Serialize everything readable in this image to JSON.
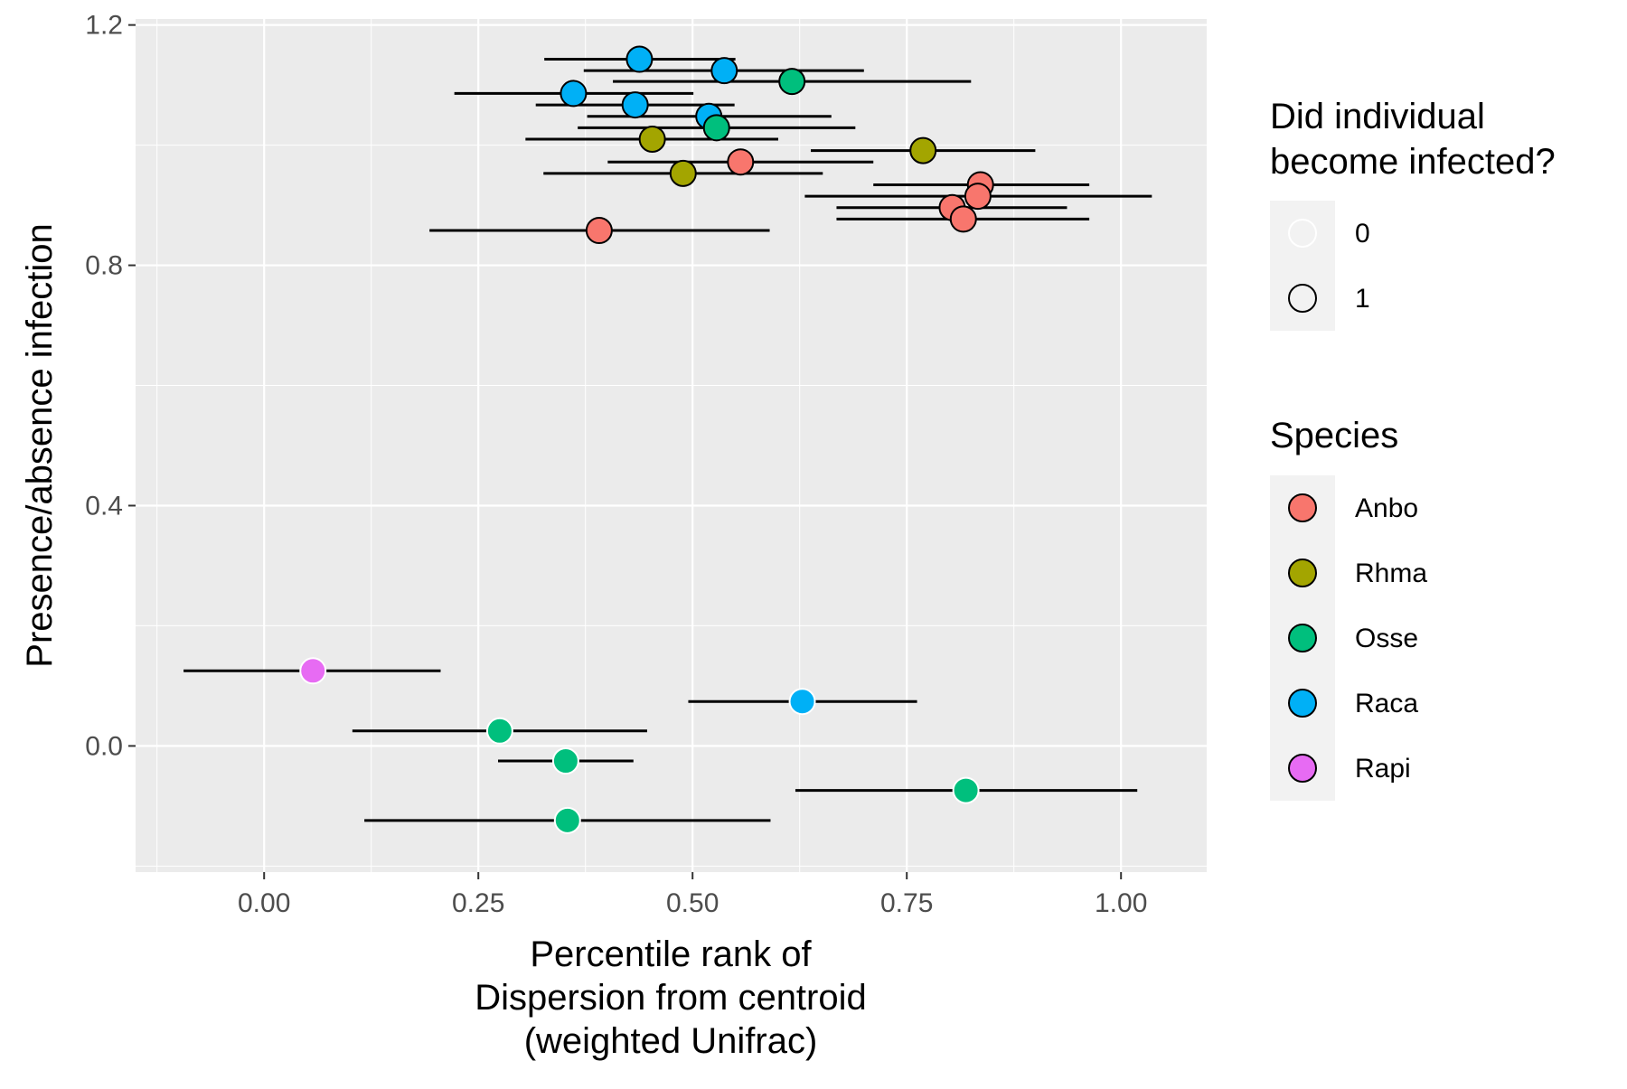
{
  "chart_data": {
    "type": "scatter",
    "title": "",
    "xlabel": [
      "Percentile rank of",
      "Dispersion from centroid",
      "(weighted Unifrac)"
    ],
    "ylabel": "Presence/absence infection",
    "xlim": [
      -0.15,
      1.1
    ],
    "ylim": [
      -0.21,
      1.21
    ],
    "x_ticks": [
      0.0,
      0.25,
      0.5,
      0.75,
      1.0
    ],
    "x_tick_labels": [
      "0.00",
      "0.25",
      "0.50",
      "0.75",
      "1.00"
    ],
    "y_ticks": [
      0.0,
      0.4,
      0.8,
      1.2
    ],
    "y_tick_labels": [
      "0.0",
      "0.4",
      "0.8",
      "1.2"
    ],
    "grid": true,
    "colors": {
      "Anbo": "#F8766D",
      "Rhma": "#A3A500",
      "Osse": "#00BF7D",
      "Raca": "#00B0F6",
      "Rapi": "#E76BF3"
    },
    "legend_infected": {
      "title": [
        "Did individual",
        "become infected?"
      ],
      "entries": [
        "0",
        "1"
      ]
    },
    "legend_species": {
      "title": "Species",
      "entries": [
        "Anbo",
        "Rhma",
        "Osse",
        "Raca",
        "Rapi"
      ]
    },
    "points": [
      {
        "species": "Raca",
        "infected": 1,
        "x": 0.438,
        "y": 1.143,
        "xmin": 0.327,
        "xmax": 0.55
      },
      {
        "species": "Raca",
        "infected": 1,
        "x": 0.537,
        "y": 1.124,
        "xmin": 0.373,
        "xmax": 0.7
      },
      {
        "species": "Osse",
        "infected": 1,
        "x": 0.616,
        "y": 1.106,
        "xmin": 0.407,
        "xmax": 0.825
      },
      {
        "species": "Raca",
        "infected": 1,
        "x": 0.361,
        "y": 1.086,
        "xmin": 0.222,
        "xmax": 0.501
      },
      {
        "species": "Raca",
        "infected": 1,
        "x": 0.433,
        "y": 1.067,
        "xmin": 0.317,
        "xmax": 0.549
      },
      {
        "species": "Raca",
        "infected": 1,
        "x": 0.519,
        "y": 1.048,
        "xmin": 0.377,
        "xmax": 0.662
      },
      {
        "species": "Osse",
        "infected": 1,
        "x": 0.528,
        "y": 1.029,
        "xmin": 0.366,
        "xmax": 0.69
      },
      {
        "species": "Rhma",
        "infected": 1,
        "x": 0.453,
        "y": 1.01,
        "xmin": 0.305,
        "xmax": 0.6
      },
      {
        "species": "Rhma",
        "infected": 1,
        "x": 0.769,
        "y": 0.991,
        "xmin": 0.638,
        "xmax": 0.9
      },
      {
        "species": "Anbo",
        "infected": 1,
        "x": 0.556,
        "y": 0.972,
        "xmin": 0.401,
        "xmax": 0.711
      },
      {
        "species": "Rhma",
        "infected": 1,
        "x": 0.489,
        "y": 0.953,
        "xmin": 0.326,
        "xmax": 0.652
      },
      {
        "species": "Anbo",
        "infected": 1,
        "x": 0.836,
        "y": 0.934,
        "xmin": 0.711,
        "xmax": 0.963
      },
      {
        "species": "Anbo",
        "infected": 1,
        "x": 0.833,
        "y": 0.915,
        "xmin": 0.631,
        "xmax": 1.036
      },
      {
        "species": "Anbo",
        "infected": 1,
        "x": 0.803,
        "y": 0.896,
        "xmin": 0.668,
        "xmax": 0.937
      },
      {
        "species": "Anbo",
        "infected": 1,
        "x": 0.816,
        "y": 0.877,
        "xmin": 0.668,
        "xmax": 0.963
      },
      {
        "species": "Anbo",
        "infected": 1,
        "x": 0.391,
        "y": 0.858,
        "xmin": 0.193,
        "xmax": 0.59
      },
      {
        "species": "Rapi",
        "infected": 0,
        "x": 0.057,
        "y": 0.125,
        "xmin": -0.094,
        "xmax": 0.206
      },
      {
        "species": "Raca",
        "infected": 0,
        "x": 0.628,
        "y": 0.074,
        "xmin": 0.495,
        "xmax": 0.762
      },
      {
        "species": "Osse",
        "infected": 0,
        "x": 0.275,
        "y": 0.025,
        "xmin": 0.103,
        "xmax": 0.447
      },
      {
        "species": "Osse",
        "infected": 0,
        "x": 0.352,
        "y": -0.025,
        "xmin": 0.273,
        "xmax": 0.431
      },
      {
        "species": "Osse",
        "infected": 0,
        "x": 0.819,
        "y": -0.074,
        "xmin": 0.62,
        "xmax": 1.019
      },
      {
        "species": "Osse",
        "infected": 0,
        "x": 0.354,
        "y": -0.124,
        "xmin": 0.117,
        "xmax": 0.591
      }
    ]
  }
}
